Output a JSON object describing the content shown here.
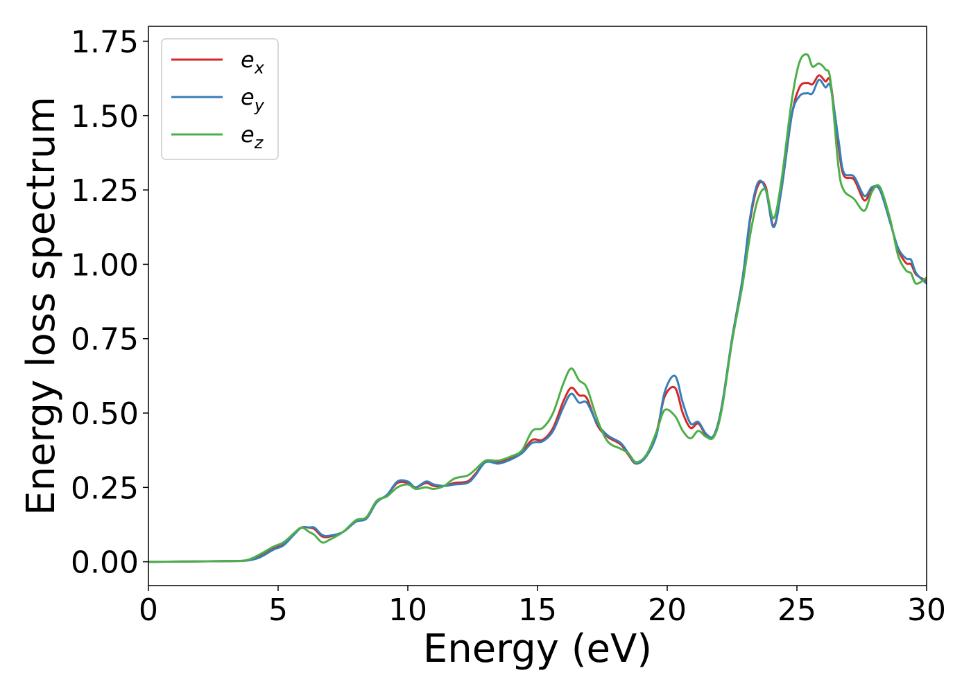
{
  "chart_data": {
    "type": "line",
    "xlabel": "Energy (eV)",
    "ylabel": "Energy loss spectrum",
    "xlim": [
      0,
      30
    ],
    "ylim": [
      -0.08,
      1.8
    ],
    "xticks": [
      0,
      5,
      10,
      15,
      20,
      25,
      30
    ],
    "yticks": [
      0.0,
      0.25,
      0.5,
      0.75,
      1.0,
      1.25,
      1.5,
      1.75
    ],
    "ytick_labels": [
      "0.00",
      "0.25",
      "0.50",
      "0.75",
      "1.00",
      "1.25",
      "1.50",
      "1.75"
    ],
    "grid": false,
    "legend_position": "top-left",
    "series": [
      {
        "name": "e",
        "subscript": "x",
        "color": "#d62728",
        "points": [
          [
            0,
            0
          ],
          [
            3,
            0.002
          ],
          [
            3.8,
            0.005
          ],
          [
            4.3,
            0.02
          ],
          [
            4.8,
            0.045
          ],
          [
            5.2,
            0.06
          ],
          [
            5.6,
            0.095
          ],
          [
            5.9,
            0.115
          ],
          [
            6.2,
            0.115
          ],
          [
            6.4,
            0.11
          ],
          [
            6.7,
            0.085
          ],
          [
            7,
            0.085
          ],
          [
            7.5,
            0.1
          ],
          [
            8,
            0.135
          ],
          [
            8.4,
            0.145
          ],
          [
            8.8,
            0.2
          ],
          [
            9.2,
            0.225
          ],
          [
            9.6,
            0.265
          ],
          [
            10,
            0.265
          ],
          [
            10.3,
            0.25
          ],
          [
            10.7,
            0.265
          ],
          [
            11,
            0.255
          ],
          [
            11.4,
            0.255
          ],
          [
            11.8,
            0.265
          ],
          [
            12.3,
            0.27
          ],
          [
            12.6,
            0.295
          ],
          [
            13,
            0.335
          ],
          [
            13.5,
            0.335
          ],
          [
            14,
            0.35
          ],
          [
            14.4,
            0.37
          ],
          [
            14.8,
            0.41
          ],
          [
            15.2,
            0.41
          ],
          [
            15.6,
            0.45
          ],
          [
            16,
            0.54
          ],
          [
            16.3,
            0.585
          ],
          [
            16.6,
            0.56
          ],
          [
            16.9,
            0.55
          ],
          [
            17.3,
            0.46
          ],
          [
            17.7,
            0.42
          ],
          [
            18.2,
            0.395
          ],
          [
            18.5,
            0.36
          ],
          [
            18.8,
            0.33
          ],
          [
            19.2,
            0.36
          ],
          [
            19.6,
            0.44
          ],
          [
            19.9,
            0.555
          ],
          [
            20.3,
            0.585
          ],
          [
            20.6,
            0.5
          ],
          [
            20.9,
            0.45
          ],
          [
            21.2,
            0.465
          ],
          [
            21.5,
            0.425
          ],
          [
            21.8,
            0.425
          ],
          [
            22.1,
            0.52
          ],
          [
            22.5,
            0.75
          ],
          [
            22.9,
            0.95
          ],
          [
            23.2,
            1.15
          ],
          [
            23.5,
            1.265
          ],
          [
            23.8,
            1.26
          ],
          [
            24.1,
            1.13
          ],
          [
            24.4,
            1.25
          ],
          [
            24.8,
            1.5
          ],
          [
            25.1,
            1.595
          ],
          [
            25.4,
            1.61
          ],
          [
            25.6,
            1.605
          ],
          [
            25.85,
            1.635
          ],
          [
            26.1,
            1.615
          ],
          [
            26.3,
            1.61
          ],
          [
            26.6,
            1.4
          ],
          [
            26.8,
            1.3
          ],
          [
            27.2,
            1.285
          ],
          [
            27.6,
            1.215
          ],
          [
            27.9,
            1.255
          ],
          [
            28.2,
            1.25
          ],
          [
            28.6,
            1.14
          ],
          [
            28.9,
            1.05
          ],
          [
            29.2,
            1.005
          ],
          [
            29.4,
            1.0
          ],
          [
            29.6,
            0.965
          ],
          [
            30,
            0.945
          ]
        ]
      },
      {
        "name": "e",
        "subscript": "y",
        "color": "#377eb8",
        "points": [
          [
            0,
            0
          ],
          [
            3,
            0.002
          ],
          [
            3.8,
            0.004
          ],
          [
            4.3,
            0.015
          ],
          [
            4.8,
            0.04
          ],
          [
            5.2,
            0.055
          ],
          [
            5.6,
            0.09
          ],
          [
            5.9,
            0.115
          ],
          [
            6.2,
            0.115
          ],
          [
            6.4,
            0.115
          ],
          [
            6.7,
            0.09
          ],
          [
            7,
            0.088
          ],
          [
            7.5,
            0.1
          ],
          [
            8,
            0.135
          ],
          [
            8.4,
            0.145
          ],
          [
            8.8,
            0.2
          ],
          [
            9.2,
            0.225
          ],
          [
            9.6,
            0.27
          ],
          [
            10,
            0.27
          ],
          [
            10.3,
            0.25
          ],
          [
            10.7,
            0.27
          ],
          [
            11,
            0.26
          ],
          [
            11.4,
            0.255
          ],
          [
            11.8,
            0.26
          ],
          [
            12.3,
            0.265
          ],
          [
            12.6,
            0.29
          ],
          [
            13,
            0.335
          ],
          [
            13.5,
            0.33
          ],
          [
            14,
            0.345
          ],
          [
            14.4,
            0.365
          ],
          [
            14.8,
            0.4
          ],
          [
            15.2,
            0.405
          ],
          [
            15.6,
            0.44
          ],
          [
            16,
            0.52
          ],
          [
            16.3,
            0.565
          ],
          [
            16.6,
            0.535
          ],
          [
            16.9,
            0.535
          ],
          [
            17.3,
            0.465
          ],
          [
            17.7,
            0.425
          ],
          [
            18.2,
            0.4
          ],
          [
            18.5,
            0.365
          ],
          [
            18.8,
            0.33
          ],
          [
            19.2,
            0.355
          ],
          [
            19.6,
            0.43
          ],
          [
            19.9,
            0.57
          ],
          [
            20.3,
            0.625
          ],
          [
            20.6,
            0.535
          ],
          [
            20.9,
            0.465
          ],
          [
            21.2,
            0.47
          ],
          [
            21.5,
            0.43
          ],
          [
            21.8,
            0.425
          ],
          [
            22.1,
            0.52
          ],
          [
            22.5,
            0.75
          ],
          [
            22.9,
            0.95
          ],
          [
            23.2,
            1.16
          ],
          [
            23.5,
            1.275
          ],
          [
            23.8,
            1.25
          ],
          [
            24.1,
            1.125
          ],
          [
            24.4,
            1.25
          ],
          [
            24.8,
            1.5
          ],
          [
            25.1,
            1.565
          ],
          [
            25.4,
            1.575
          ],
          [
            25.6,
            1.575
          ],
          [
            25.85,
            1.62
          ],
          [
            26.1,
            1.595
          ],
          [
            26.3,
            1.595
          ],
          [
            26.6,
            1.42
          ],
          [
            26.8,
            1.31
          ],
          [
            27.2,
            1.295
          ],
          [
            27.6,
            1.23
          ],
          [
            27.9,
            1.26
          ],
          [
            28.2,
            1.25
          ],
          [
            28.6,
            1.14
          ],
          [
            28.9,
            1.055
          ],
          [
            29.2,
            1.02
          ],
          [
            29.4,
            1.015
          ],
          [
            29.6,
            0.97
          ],
          [
            30,
            0.935
          ]
        ]
      },
      {
        "name": "e",
        "subscript": "z",
        "color": "#4daf4a",
        "points": [
          [
            0,
            0
          ],
          [
            3,
            0.002
          ],
          [
            3.8,
            0.006
          ],
          [
            4.3,
            0.025
          ],
          [
            4.8,
            0.05
          ],
          [
            5.2,
            0.065
          ],
          [
            5.6,
            0.095
          ],
          [
            5.9,
            0.115
          ],
          [
            6.2,
            0.1
          ],
          [
            6.4,
            0.09
          ],
          [
            6.7,
            0.065
          ],
          [
            7,
            0.075
          ],
          [
            7.5,
            0.1
          ],
          [
            8,
            0.14
          ],
          [
            8.4,
            0.15
          ],
          [
            8.8,
            0.205
          ],
          [
            9.2,
            0.22
          ],
          [
            9.6,
            0.25
          ],
          [
            10,
            0.26
          ],
          [
            10.3,
            0.245
          ],
          [
            10.7,
            0.25
          ],
          [
            11,
            0.245
          ],
          [
            11.4,
            0.255
          ],
          [
            11.8,
            0.28
          ],
          [
            12.3,
            0.29
          ],
          [
            12.6,
            0.31
          ],
          [
            13,
            0.34
          ],
          [
            13.5,
            0.34
          ],
          [
            14,
            0.355
          ],
          [
            14.4,
            0.375
          ],
          [
            14.8,
            0.44
          ],
          [
            15.2,
            0.45
          ],
          [
            15.6,
            0.5
          ],
          [
            16,
            0.6
          ],
          [
            16.3,
            0.65
          ],
          [
            16.6,
            0.61
          ],
          [
            16.9,
            0.585
          ],
          [
            17.3,
            0.48
          ],
          [
            17.7,
            0.405
          ],
          [
            18.2,
            0.38
          ],
          [
            18.5,
            0.365
          ],
          [
            18.8,
            0.335
          ],
          [
            19.2,
            0.36
          ],
          [
            19.6,
            0.44
          ],
          [
            19.9,
            0.51
          ],
          [
            20.3,
            0.49
          ],
          [
            20.6,
            0.44
          ],
          [
            20.9,
            0.415
          ],
          [
            21.2,
            0.44
          ],
          [
            21.5,
            0.42
          ],
          [
            21.8,
            0.42
          ],
          [
            22.1,
            0.51
          ],
          [
            22.5,
            0.74
          ],
          [
            22.9,
            0.93
          ],
          [
            23.2,
            1.1
          ],
          [
            23.5,
            1.22
          ],
          [
            23.8,
            1.25
          ],
          [
            24.1,
            1.155
          ],
          [
            24.4,
            1.28
          ],
          [
            24.8,
            1.55
          ],
          [
            25.1,
            1.68
          ],
          [
            25.4,
            1.705
          ],
          [
            25.6,
            1.665
          ],
          [
            25.85,
            1.675
          ],
          [
            26.1,
            1.655
          ],
          [
            26.3,
            1.615
          ],
          [
            26.6,
            1.33
          ],
          [
            26.8,
            1.25
          ],
          [
            27.2,
            1.22
          ],
          [
            27.6,
            1.18
          ],
          [
            27.9,
            1.245
          ],
          [
            28.2,
            1.26
          ],
          [
            28.6,
            1.15
          ],
          [
            28.9,
            1.03
          ],
          [
            29.2,
            0.98
          ],
          [
            29.4,
            0.97
          ],
          [
            29.6,
            0.935
          ],
          [
            30,
            0.955
          ]
        ]
      }
    ]
  }
}
